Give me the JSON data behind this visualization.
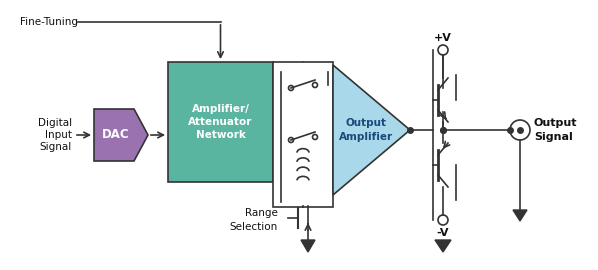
{
  "bg_color": "#ffffff",
  "title": "",
  "dac_color": "#9b72b0",
  "amp_att_color": "#5ab5a0",
  "output_amp_color": "#a8d8ea",
  "box_edge_color": "#333333",
  "text_color": "#111111",
  "arrow_color": "#222222",
  "label_fine_tuning": "Fine-Tuning",
  "label_digital_input": "Digital\nInput\nSignal",
  "label_dac": "DAC",
  "label_amp_att": "Amplifier/\nAttenuator\nNetwork",
  "label_output_amp": "Output\nAmplifier",
  "label_output_signal": "Output\nSignal",
  "label_range_selection": "Range\nSelection",
  "label_plus_v": "+V",
  "label_minus_v": "-V"
}
